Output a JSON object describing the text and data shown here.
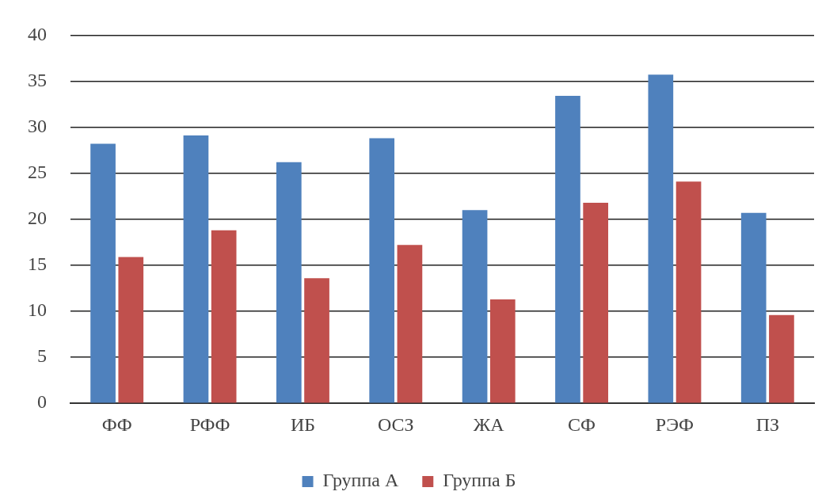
{
  "chart_data": {
    "type": "bar",
    "categories": [
      "ФФ",
      "РФФ",
      "ИБ",
      "ОСЗ",
      "ЖА",
      "СФ",
      "РЭФ",
      "ПЗ"
    ],
    "series": [
      {
        "name": "Группа А",
        "color": "#4f81bd",
        "values": [
          28.2,
          29.1,
          26.2,
          28.8,
          21.0,
          33.4,
          35.7,
          20.7
        ]
      },
      {
        "name": "Группа Б",
        "color": "#c0504d",
        "values": [
          15.9,
          18.8,
          13.6,
          17.2,
          11.3,
          21.8,
          24.1,
          9.6
        ]
      }
    ],
    "ylim": [
      0,
      40
    ],
    "yticks": [
      0,
      5,
      10,
      15,
      20,
      25,
      30,
      35,
      40
    ],
    "grid": "y",
    "legend": "bottom"
  }
}
